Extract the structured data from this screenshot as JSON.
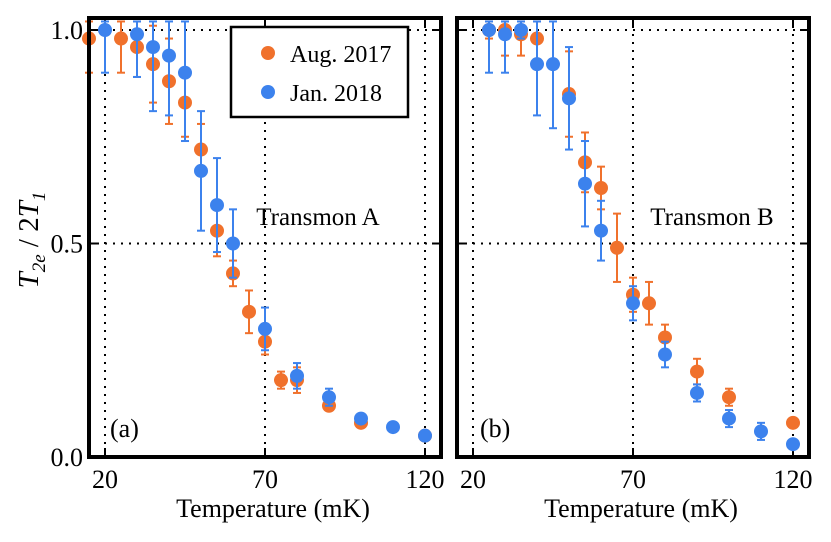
{
  "figure": {
    "ylabel_main": "T",
    "ylabel_sub1": "2e",
    "ylabel_mid": " / 2",
    "ylabel_t": "T",
    "ylabel_sub2": "1"
  },
  "legend": {
    "entries": [
      {
        "label": "Aug. 2017",
        "color": "#F0712C"
      },
      {
        "label": "Jan. 2018",
        "color": "#3C82ED"
      }
    ]
  },
  "chart_data": [
    {
      "type": "scatter",
      "panel": "(a)",
      "annotation": "Transmon A",
      "xlabel": "Temperature (mK)",
      "ylabel": "T2e / 2T1",
      "xlim": [
        15,
        125
      ],
      "ylim": [
        0,
        1
      ],
      "xticks": [
        20,
        70,
        120
      ],
      "xtick_labels": [
        "20",
        "70",
        "120"
      ],
      "yticks": [
        0,
        0.5,
        1
      ],
      "ytick_labels": [
        "0.0",
        "0.5",
        "1.0"
      ],
      "gridlines_x": [
        20,
        70,
        120
      ],
      "gridlines_y": [
        0.5,
        1.0
      ],
      "series": [
        {
          "name": "Aug. 2017",
          "color": "#F0712C",
          "x": [
            15,
            25,
            30,
            35,
            40,
            45,
            50,
            55,
            60,
            65,
            70,
            75,
            80,
            90,
            100,
            120
          ],
          "y": [
            0.98,
            0.98,
            0.96,
            0.92,
            0.88,
            0.83,
            0.72,
            0.53,
            0.43,
            0.34,
            0.27,
            0.18,
            0.18,
            0.12,
            0.08,
            0.05
          ],
          "err": [
            0.08,
            0.08,
            0.07,
            0.09,
            0.1,
            0.08,
            0.06,
            0.06,
            0.03,
            0.05,
            0.03,
            0.02,
            0.03,
            0.01,
            0.01,
            0.01
          ]
        },
        {
          "name": "Jan. 2018",
          "color": "#3C82ED",
          "x": [
            20,
            30,
            35,
            40,
            45,
            50,
            55,
            60,
            70,
            80,
            90,
            100,
            110,
            120
          ],
          "y": [
            1.0,
            0.99,
            0.96,
            0.94,
            0.9,
            0.67,
            0.59,
            0.5,
            0.3,
            0.19,
            0.14,
            0.09,
            0.07,
            0.05
          ],
          "err": [
            0.1,
            0.1,
            0.15,
            0.14,
            0.16,
            0.14,
            0.11,
            0.08,
            0.05,
            0.03,
            0.02,
            0.01,
            0.01,
            0.01
          ]
        }
      ]
    },
    {
      "type": "scatter",
      "panel": "(b)",
      "annotation": "Transmon B",
      "xlabel": "Temperature (mK)",
      "ylabel": "",
      "xlim": [
        15,
        125
      ],
      "ylim": [
        0,
        1
      ],
      "xticks": [
        20,
        70,
        120
      ],
      "xtick_labels": [
        "20",
        "70",
        "120"
      ],
      "yticks": [
        0,
        0.5,
        1
      ],
      "ytick_labels": [],
      "gridlines_x": [
        20,
        70,
        120
      ],
      "gridlines_y": [
        0.5,
        1.0
      ],
      "series": [
        {
          "name": "Aug. 2017",
          "color": "#F0712C",
          "x": [
            25,
            30,
            35,
            40,
            50,
            55,
            60,
            65,
            70,
            75,
            80,
            90,
            100,
            120
          ],
          "y": [
            1.0,
            1.0,
            0.99,
            0.98,
            0.85,
            0.69,
            0.63,
            0.49,
            0.38,
            0.36,
            0.28,
            0.2,
            0.14,
            0.08
          ],
          "err": [
            0.02,
            0.06,
            0.05,
            0.06,
            0.1,
            0.07,
            0.05,
            0.08,
            0.04,
            0.05,
            0.03,
            0.03,
            0.02,
            0.01
          ]
        },
        {
          "name": "Jan. 2018",
          "color": "#3C82ED",
          "x": [
            25,
            30,
            35,
            40,
            45,
            50,
            55,
            60,
            70,
            80,
            90,
            100,
            110,
            120
          ],
          "y": [
            1.0,
            0.99,
            1.0,
            0.92,
            0.92,
            0.84,
            0.64,
            0.53,
            0.36,
            0.24,
            0.15,
            0.09,
            0.06,
            0.03
          ],
          "err": [
            0.1,
            0.09,
            0.02,
            0.12,
            0.15,
            0.12,
            0.1,
            0.07,
            0.04,
            0.03,
            0.02,
            0.02,
            0.02,
            0.01
          ]
        }
      ]
    }
  ]
}
